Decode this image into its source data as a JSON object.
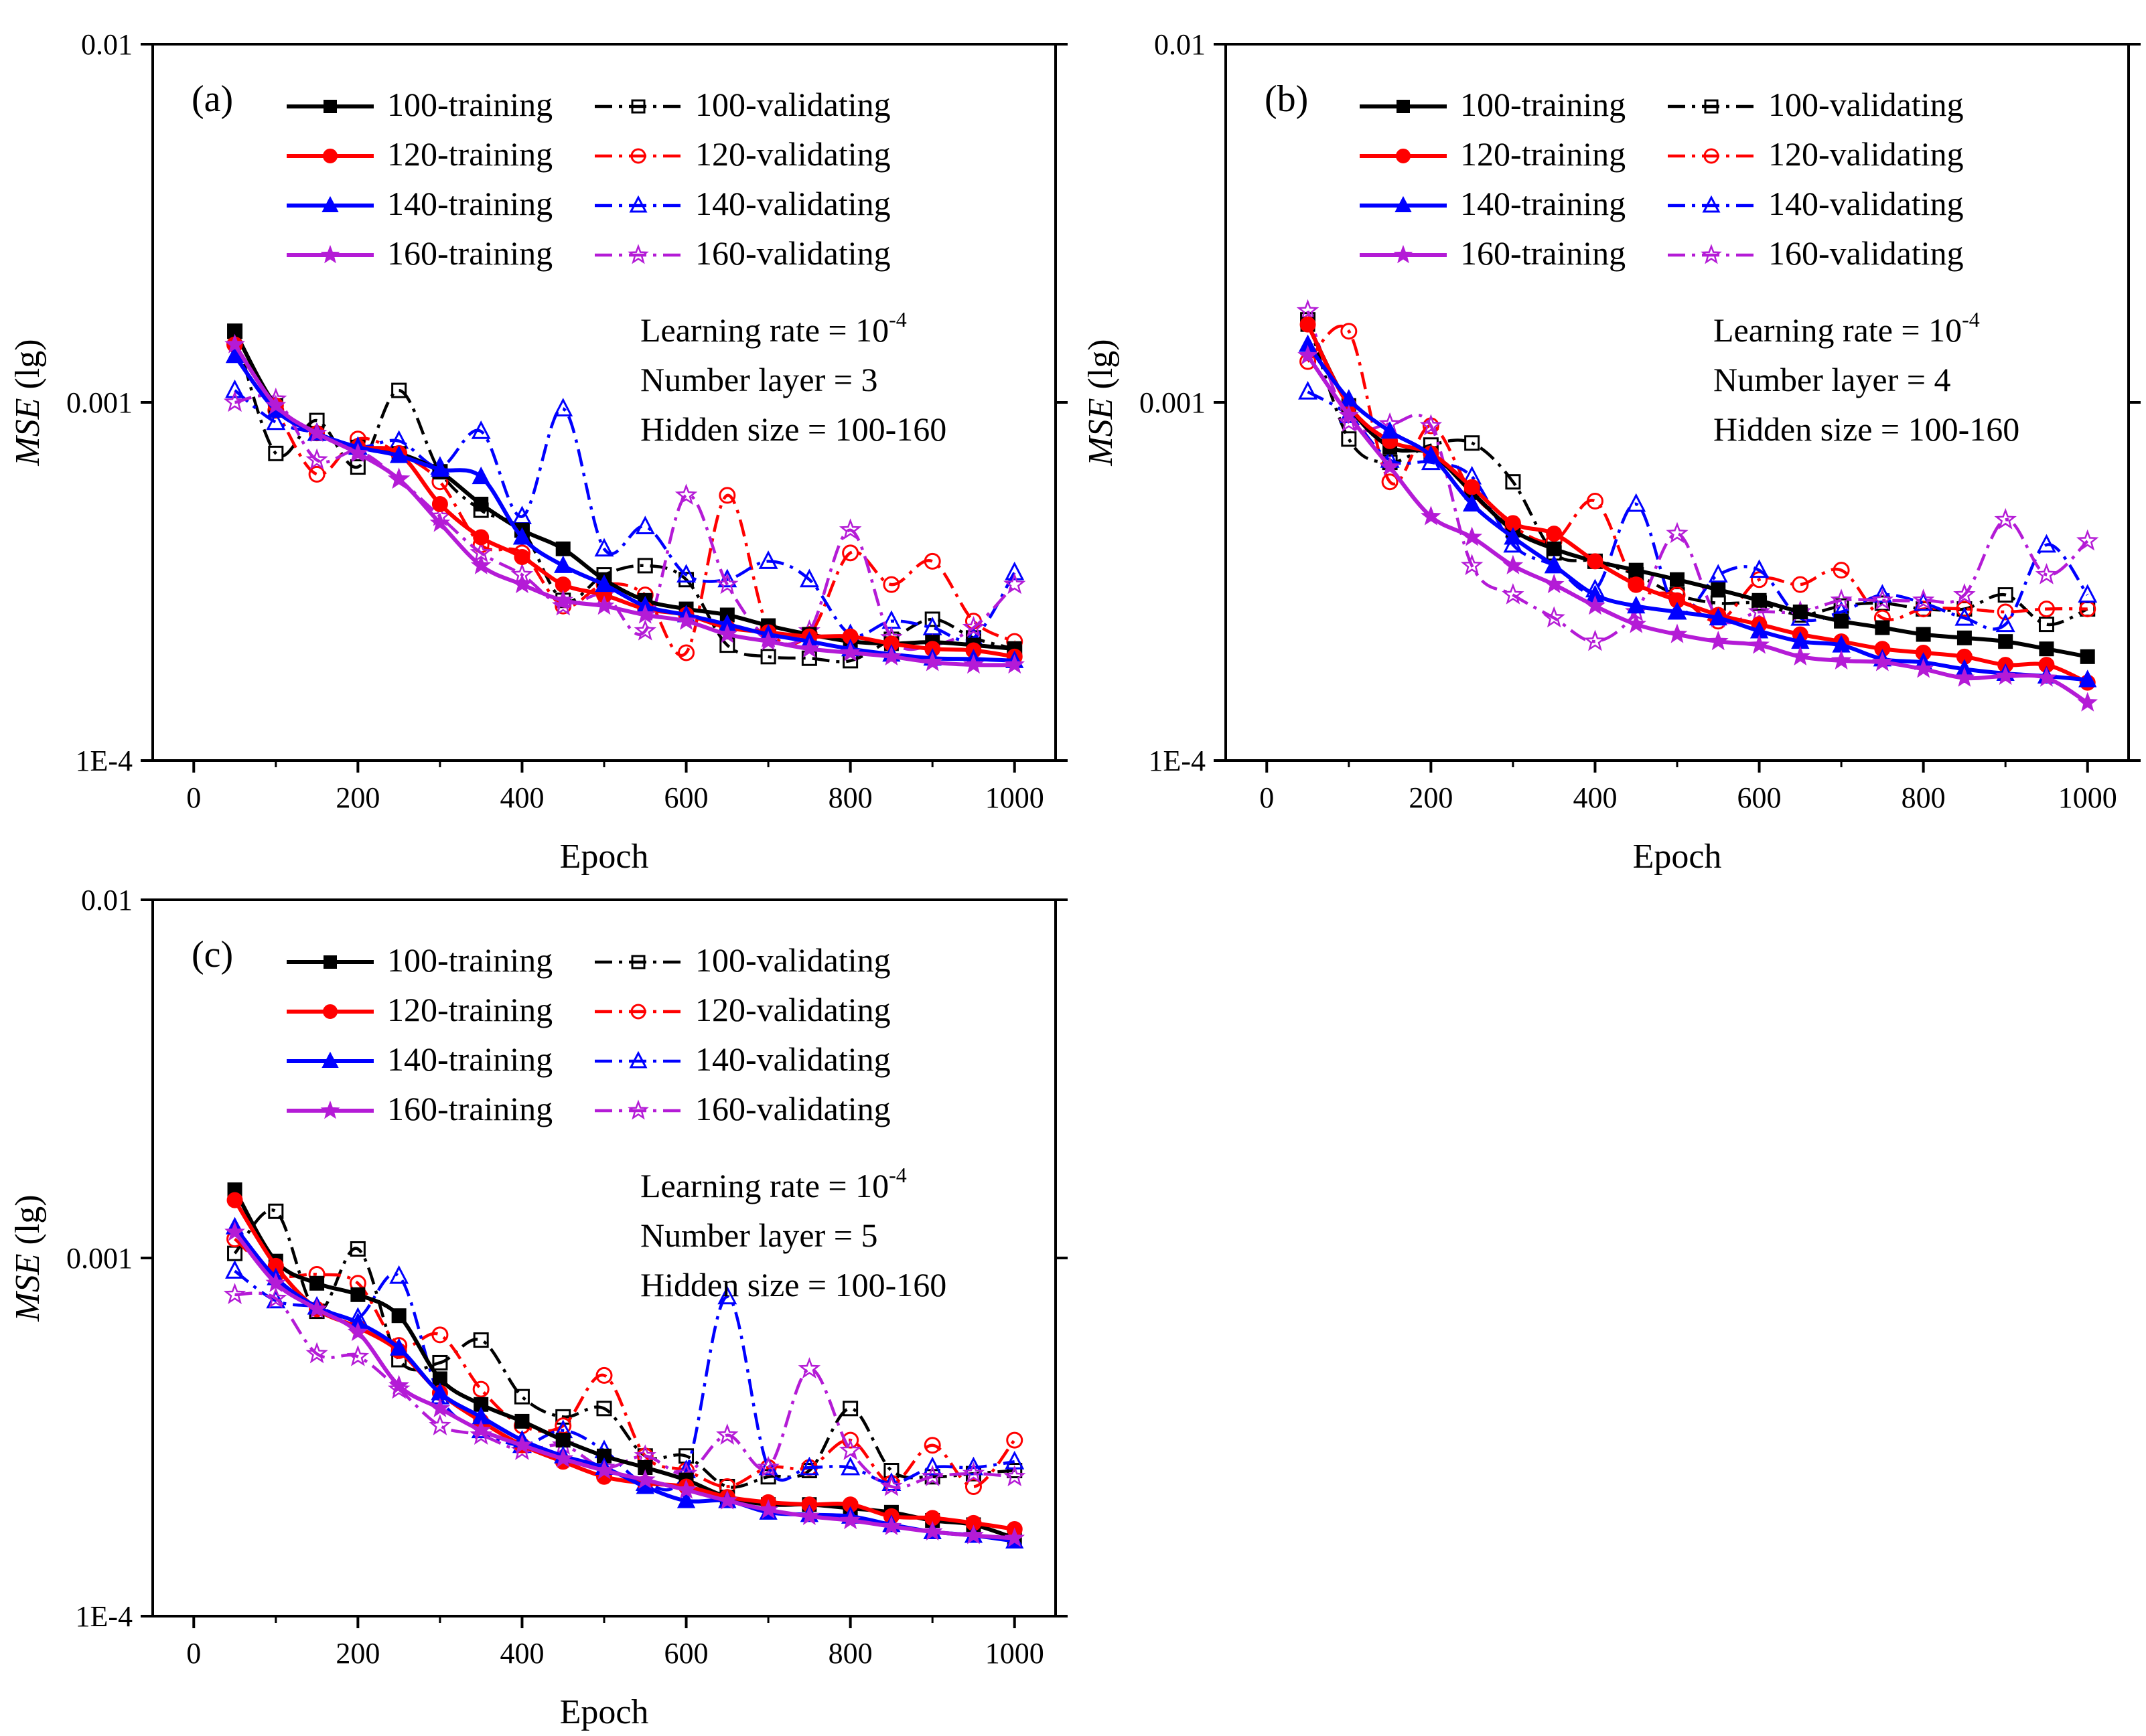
{
  "chart_data": [
    {
      "type": "line",
      "panel_label": "(a)",
      "xlabel": "Epoch",
      "ylabel": "MSE",
      "ylabel_suffix": " (lg)",
      "yscale": "log",
      "xlim": [
        -50,
        1050
      ],
      "ylim": [
        0.0001,
        0.01
      ],
      "x_ticks": [
        "0",
        "200",
        "400",
        "600",
        "800",
        "1000"
      ],
      "y_ticks": [
        "1E-4",
        "0.001",
        "0.01"
      ],
      "annotation": [
        "Learning rate = 10",
        "Number layer = 3",
        "Hidden size = 100-160"
      ],
      "annotation_exponent": "-4",
      "x": [
        50,
        100,
        150,
        200,
        250,
        300,
        350,
        400,
        450,
        500,
        550,
        600,
        650,
        700,
        750,
        800,
        850,
        900,
        950,
        1000
      ],
      "series": [
        {
          "name": "100-training",
          "color": "#000000",
          "marker": "square",
          "filled": true,
          "dashed": false,
          "values": [
            0.00158,
            0.00098,
            0.00082,
            0.00075,
            0.00072,
            0.00064,
            0.00052,
            0.00044,
            0.00039,
            0.00032,
            0.00028,
            0.000265,
            0.000255,
            0.000238,
            0.000225,
            0.000215,
            0.000212,
            0.000214,
            0.00021,
            0.000205
          ]
        },
        {
          "name": "100-validating",
          "color": "#000000",
          "marker": "square",
          "filled": false,
          "dashed": true,
          "values": [
            0.00158,
            0.00072,
            0.00089,
            0.00066,
            0.00108,
            0.00064,
            0.0005,
            0.00044,
            0.00028,
            0.00033,
            0.00035,
            0.00032,
            0.00021,
            0.000195,
            0.000193,
            0.00019,
            0.000218,
            0.000248,
            0.00022,
            0.000205
          ]
        },
        {
          "name": "120-training",
          "color": "#ff0000",
          "marker": "circle",
          "filled": true,
          "dashed": false,
          "values": [
            0.00145,
            0.00098,
            0.00082,
            0.00075,
            0.00072,
            0.00052,
            0.00042,
            0.00037,
            0.00031,
            0.00029,
            0.000265,
            0.000255,
            0.000235,
            0.000228,
            0.000222,
            0.000222,
            0.000212,
            0.000205,
            0.000203,
            0.000195
          ]
        },
        {
          "name": "120-validating",
          "color": "#ff0000",
          "marker": "circle",
          "filled": false,
          "dashed": true,
          "values": [
            0.00145,
            0.00095,
            0.00063,
            0.00079,
            0.00072,
            0.0006,
            0.0004,
            0.00038,
            0.00027,
            0.00031,
            0.00029,
            0.0002,
            0.00055,
            0.000235,
            0.000225,
            0.00038,
            0.00031,
            0.00036,
            0.000245,
            0.000215
          ]
        },
        {
          "name": "140-training",
          "color": "#0000ff",
          "marker": "triangle",
          "filled": true,
          "dashed": false,
          "values": [
            0.00135,
            0.00095,
            0.00082,
            0.00075,
            0.00071,
            0.00065,
            0.00062,
            0.00042,
            0.00035,
            0.00031,
            0.00027,
            0.000255,
            0.00024,
            0.000225,
            0.000215,
            0.000205,
            0.000198,
            0.000193,
            0.000192,
            0.00019
          ]
        },
        {
          "name": "140-validating",
          "color": "#0000ff",
          "marker": "triangle",
          "filled": false,
          "dashed": true,
          "values": [
            0.00108,
            0.00088,
            0.00082,
            0.00075,
            0.00078,
            0.00066,
            0.00083,
            0.00048,
            0.00096,
            0.00039,
            0.00045,
            0.00033,
            0.00032,
            0.00036,
            0.00032,
            0.000225,
            0.000245,
            0.000235,
            0.00022,
            0.000335
          ]
        },
        {
          "name": "160-training",
          "color": "#b41bd6",
          "marker": "star",
          "filled": true,
          "dashed": false,
          "values": [
            0.00145,
            0.00098,
            0.00082,
            0.00072,
            0.00061,
            0.00046,
            0.00035,
            0.00031,
            0.00028,
            0.00027,
            0.000255,
            0.000245,
            0.000225,
            0.000215,
            0.000205,
            0.0002,
            0.000195,
            0.000188,
            0.000185,
            0.000185
          ]
        },
        {
          "name": "160-validating",
          "color": "#b41bd6",
          "marker": "star",
          "filled": false,
          "dashed": true,
          "values": [
            0.001,
            0.00102,
            0.00069,
            0.00073,
            0.00061,
            0.00048,
            0.00038,
            0.00033,
            0.00027,
            0.00029,
            0.00023,
            0.00055,
            0.00031,
            0.00022,
            0.00023,
            0.00044,
            0.00022,
            0.00021,
            0.000235,
            0.00031
          ]
        }
      ]
    },
    {
      "type": "line",
      "panel_label": "(b)",
      "xlabel": "Epoch",
      "ylabel": "MSE",
      "ylabel_suffix": " (lg)",
      "yscale": "log",
      "xlim": [
        -50,
        1050
      ],
      "ylim": [
        0.0001,
        0.01
      ],
      "x_ticks": [
        "0",
        "200",
        "400",
        "600",
        "800",
        "1000"
      ],
      "y_ticks": [
        "1E-4",
        "0.001",
        "0.01"
      ],
      "annotation": [
        "Learning rate = 10",
        "Number layer = 4",
        "Hidden size = 100-160"
      ],
      "annotation_exponent": "-4",
      "x": [
        50,
        100,
        150,
        200,
        250,
        300,
        350,
        400,
        450,
        500,
        550,
        600,
        650,
        700,
        750,
        800,
        850,
        900,
        950,
        1000
      ],
      "series": [
        {
          "name": "100-training",
          "color": "#000000",
          "marker": "square",
          "filled": true,
          "dashed": false,
          "values": [
            0.00165,
            0.00098,
            0.00075,
            0.00072,
            0.00056,
            0.00044,
            0.00039,
            0.00036,
            0.00034,
            0.00032,
            0.0003,
            0.00028,
            0.00026,
            0.000245,
            0.000235,
            0.000225,
            0.00022,
            0.000215,
            0.000205,
            0.000195
          ]
        },
        {
          "name": "100-validating",
          "color": "#000000",
          "marker": "square",
          "filled": false,
          "dashed": true,
          "values": [
            0.0017,
            0.00079,
            0.00068,
            0.00076,
            0.00077,
            0.0006,
            0.00038,
            0.00036,
            0.00033,
            0.00029,
            0.000275,
            0.000275,
            0.000255,
            0.00027,
            0.000275,
            0.000265,
            0.000265,
            0.00029,
            0.00024,
            0.000265
          ]
        },
        {
          "name": "120-training",
          "color": "#ff0000",
          "marker": "circle",
          "filled": true,
          "dashed": false,
          "values": [
            0.00165,
            0.00098,
            0.00078,
            0.00072,
            0.00058,
            0.00046,
            0.00043,
            0.00036,
            0.00031,
            0.00028,
            0.000255,
            0.00024,
            0.000225,
            0.000215,
            0.000205,
            0.0002,
            0.000195,
            0.000185,
            0.000185,
            0.000165
          ]
        },
        {
          "name": "120-validating",
          "color": "#ff0000",
          "marker": "circle",
          "filled": false,
          "dashed": true,
          "values": [
            0.0013,
            0.00158,
            0.0006,
            0.00086,
            0.00056,
            0.00045,
            0.00041,
            0.00053,
            0.00031,
            0.00029,
            0.000245,
            0.00032,
            0.00031,
            0.00034,
            0.00025,
            0.000265,
            0.000265,
            0.00026,
            0.000265,
            0.000265
          ]
        },
        {
          "name": "140-training",
          "color": "#0000ff",
          "marker": "triangle",
          "filled": true,
          "dashed": false,
          "values": [
            0.00145,
            0.00102,
            0.00083,
            0.00071,
            0.00052,
            0.00042,
            0.00035,
            0.00029,
            0.00027,
            0.00026,
            0.00025,
            0.00023,
            0.000215,
            0.00021,
            0.000192,
            0.000188,
            0.00018,
            0.000175,
            0.000172,
            0.000168
          ]
        },
        {
          "name": "140-validating",
          "color": "#0000ff",
          "marker": "triangle",
          "filled": false,
          "dashed": true,
          "values": [
            0.00107,
            0.00092,
            0.00069,
            0.00068,
            0.00062,
            0.0004,
            0.00035,
            0.0003,
            0.00052,
            0.00026,
            0.00033,
            0.00034,
            0.00025,
            0.00026,
            0.00029,
            0.000275,
            0.00025,
            0.00024,
            0.0004,
            0.00029
          ]
        },
        {
          "name": "160-training",
          "color": "#b41bd6",
          "marker": "star",
          "filled": true,
          "dashed": false,
          "values": [
            0.00135,
            0.00092,
            0.00066,
            0.00048,
            0.00042,
            0.00035,
            0.00031,
            0.00027,
            0.00024,
            0.000225,
            0.000215,
            0.00021,
            0.000195,
            0.00019,
            0.000188,
            0.00018,
            0.00017,
            0.000172,
            0.00017,
            0.000145
          ]
        },
        {
          "name": "160-validating",
          "color": "#b41bd6",
          "marker": "star",
          "filled": false,
          "dashed": true,
          "values": [
            0.0018,
            0.00088,
            0.00087,
            0.00086,
            0.00035,
            0.00029,
            0.00025,
            0.000215,
            0.00026,
            0.00043,
            0.00025,
            0.00026,
            0.00026,
            0.00028,
            0.00028,
            0.00028,
            0.00029,
            0.00047,
            0.00033,
            0.00041
          ]
        }
      ]
    },
    {
      "type": "line",
      "panel_label": "(c)",
      "xlabel": "Epoch",
      "ylabel": "MSE",
      "ylabel_suffix": " (lg)",
      "yscale": "log",
      "xlim": [
        -50,
        1050
      ],
      "ylim": [
        0.0001,
        0.01
      ],
      "x_ticks": [
        "0",
        "200",
        "400",
        "600",
        "800",
        "1000"
      ],
      "y_ticks": [
        "1E-4",
        "0.001",
        "0.01"
      ],
      "annotation": [
        "Learning rate = 10",
        "Number layer = 5",
        "Hidden size = 100-160"
      ],
      "annotation_exponent": "-4",
      "x": [
        50,
        100,
        150,
        200,
        250,
        300,
        350,
        400,
        450,
        500,
        550,
        600,
        650,
        700,
        750,
        800,
        850,
        900,
        950,
        1000
      ],
      "series": [
        {
          "name": "100-training",
          "color": "#000000",
          "marker": "square",
          "filled": true,
          "dashed": false,
          "values": [
            0.00155,
            0.00098,
            0.00085,
            0.00079,
            0.00069,
            0.00046,
            0.00039,
            0.00035,
            0.00031,
            0.00028,
            0.00026,
            0.00024,
            0.000215,
            0.000205,
            0.000205,
            0.0002,
            0.000195,
            0.000185,
            0.00018,
            0.000165
          ]
        },
        {
          "name": "100-validating",
          "color": "#000000",
          "marker": "square",
          "filled": false,
          "dashed": true,
          "values": [
            0.00103,
            0.00135,
            0.00071,
            0.00106,
            0.00052,
            0.00051,
            0.00059,
            0.00041,
            0.00036,
            0.00038,
            0.00028,
            0.00028,
            0.00023,
            0.000245,
            0.000255,
            0.00038,
            0.000255,
            0.000245,
            0.00025,
            0.000255
          ]
        },
        {
          "name": "120-training",
          "color": "#ff0000",
          "marker": "circle",
          "filled": true,
          "dashed": false,
          "values": [
            0.00145,
            0.00095,
            0.00072,
            0.00064,
            0.00055,
            0.00042,
            0.00035,
            0.0003,
            0.00027,
            0.000245,
            0.000235,
            0.00023,
            0.000215,
            0.000208,
            0.000205,
            0.000205,
            0.00019,
            0.000188,
            0.000182,
            0.000175
          ]
        },
        {
          "name": "120-validating",
          "color": "#ff0000",
          "marker": "circle",
          "filled": false,
          "dashed": true,
          "values": [
            0.00113,
            0.0009,
            0.0009,
            0.00085,
            0.00057,
            0.00061,
            0.00043,
            0.00034,
            0.00034,
            0.00047,
            0.00028,
            0.000255,
            0.00023,
            0.00026,
            0.00026,
            0.00031,
            0.000235,
            0.0003,
            0.00023,
            0.00031
          ]
        },
        {
          "name": "140-training",
          "color": "#0000ff",
          "marker": "triangle",
          "filled": true,
          "dashed": false,
          "values": [
            0.00122,
            0.00088,
            0.00073,
            0.00066,
            0.00056,
            0.00042,
            0.00036,
            0.00031,
            0.00028,
            0.00026,
            0.00023,
            0.00021,
            0.00021,
            0.000195,
            0.000192,
            0.00019,
            0.00018,
            0.000172,
            0.000168,
            0.000162
          ]
        },
        {
          "name": "140-validating",
          "color": "#0000ff",
          "marker": "triangle",
          "filled": false,
          "dashed": true,
          "values": [
            0.00092,
            0.00076,
            0.00073,
            0.00068,
            0.00089,
            0.00041,
            0.00033,
            0.0003,
            0.00033,
            0.00029,
            0.000235,
            0.000255,
            0.00078,
            0.00026,
            0.00026,
            0.00026,
            0.000235,
            0.00026,
            0.00026,
            0.00027
          ]
        },
        {
          "name": "160-training",
          "color": "#b41bd6",
          "marker": "star",
          "filled": true,
          "dashed": false,
          "values": [
            0.00118,
            0.00085,
            0.00072,
            0.00062,
            0.00044,
            0.00038,
            0.00033,
            0.0003,
            0.000275,
            0.000255,
            0.00024,
            0.000225,
            0.00021,
            0.000198,
            0.00019,
            0.000185,
            0.000178,
            0.000172,
            0.000168,
            0.000165
          ]
        },
        {
          "name": "160-validating",
          "color": "#b41bd6",
          "marker": "star",
          "filled": false,
          "dashed": true,
          "values": [
            0.00079,
            0.00077,
            0.00054,
            0.00053,
            0.00043,
            0.00034,
            0.00032,
            0.00029,
            0.0003,
            0.00026,
            0.00028,
            0.00025,
            0.00032,
            0.00026,
            0.00049,
            0.00029,
            0.00023,
            0.000245,
            0.00025,
            0.000245
          ]
        }
      ]
    }
  ]
}
